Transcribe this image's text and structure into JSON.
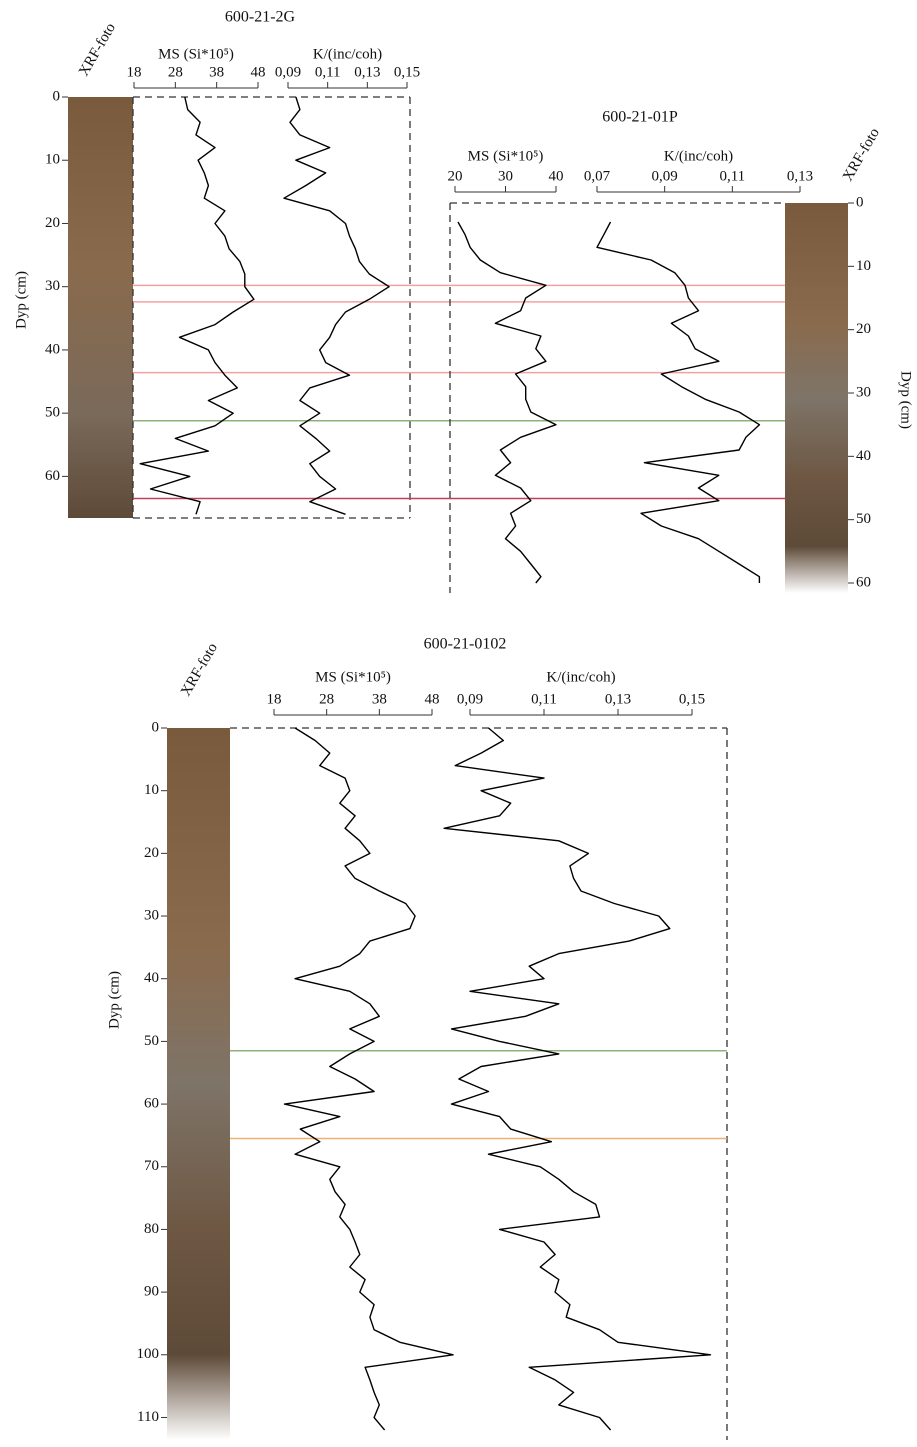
{
  "chart_data": [
    {
      "type": "line",
      "title": "600-21-2G",
      "photo_label": "XRF-foto",
      "ylabel": "Dyp (cm)",
      "ylim": [
        0,
        65
      ],
      "yticks": [
        0,
        10,
        20,
        30,
        40,
        50,
        60
      ],
      "y": [
        0,
        2,
        4,
        6,
        8,
        10,
        12,
        14,
        16,
        18,
        20,
        22,
        24,
        26,
        28,
        30,
        32,
        34,
        36,
        38,
        40,
        42,
        44,
        46,
        48,
        50,
        52,
        54,
        56,
        58,
        60,
        62,
        64,
        66
      ],
      "series": [
        {
          "name": "MS (Si*10⁵)",
          "color": "#000000",
          "xlim": [
            18,
            48
          ],
          "xticks": [
            18,
            28,
            38,
            48
          ],
          "values": [
            30.3,
            31,
            34,
            33,
            37.6,
            33.5,
            35,
            36,
            35,
            40,
            37.6,
            40,
            41,
            43.6,
            44.8,
            44.8,
            47,
            42,
            37.6,
            29,
            36,
            37.6,
            40,
            43,
            36,
            42,
            37.6,
            28,
            36,
            19.5,
            31.5,
            22,
            34,
            33
          ]
        },
        {
          "name": "K/(inc/coh)",
          "color": "#000000",
          "xlim": [
            0.09,
            0.15
          ],
          "xticks": [
            {
              "value": 0.09,
              "label": "0,09"
            },
            {
              "value": 0.11,
              "label": "0,11"
            },
            {
              "value": 0.13,
              "label": "0,13"
            },
            {
              "value": 0.15,
              "label": "0,15"
            }
          ],
          "values": [
            0.094,
            0.096,
            0.091,
            0.096,
            0.111,
            0.094,
            0.109,
            0.099,
            0.088,
            0.111,
            0.119,
            0.121,
            0.124,
            0.126,
            0.131,
            0.141,
            0.131,
            0.119,
            0.114,
            0.111,
            0.106,
            0.109,
            0.121,
            0.101,
            0.096,
            0.106,
            0.096,
            0.104,
            0.111,
            0.101,
            0.106,
            0.114,
            0.101,
            0.119
          ]
        }
      ],
      "markers": [
        {
          "y": 29.8,
          "color": "#f4a0a0"
        },
        {
          "y": 32.4,
          "color": "#f4a0a0"
        },
        {
          "y": 43.6,
          "color": "#f4a0a0"
        },
        {
          "y": 51.2,
          "color": "#8fb07a"
        },
        {
          "y": 63.5,
          "color": "#c04060"
        }
      ]
    },
    {
      "type": "line",
      "title": "600-21-01P",
      "photo_label": "XRF-foto",
      "ylabel": "Dyp (cm)",
      "ylim": [
        0,
        60
      ],
      "yticks": [
        0,
        10,
        20,
        30,
        40,
        50,
        60
      ],
      "y": [
        3,
        5,
        7,
        9,
        11,
        13,
        15,
        17,
        19,
        21,
        23,
        25,
        27,
        29,
        31,
        33,
        35,
        37,
        39,
        41,
        43,
        45,
        47,
        49,
        51,
        53,
        55,
        57,
        59,
        60
      ],
      "series": [
        {
          "name": "MS (Si*10⁵)",
          "color": "#000000",
          "xlim": [
            20,
            40
          ],
          "xticks": [
            20,
            30,
            40
          ],
          "values": [
            20.6,
            22,
            23,
            25,
            29,
            38,
            34,
            33,
            28,
            37,
            36,
            38,
            32,
            34,
            34,
            35,
            40,
            33,
            29,
            31,
            28,
            33,
            35,
            31,
            32,
            30,
            33,
            35,
            37,
            36
          ]
        },
        {
          "name": "K/(inc/coh)",
          "color": "#000000",
          "xlim": [
            0.07,
            0.13
          ],
          "xticks": [
            {
              "value": 0.07,
              "label": "0,07"
            },
            {
              "value": 0.09,
              "label": "0,09"
            },
            {
              "value": 0.11,
              "label": "0,11"
            },
            {
              "value": 0.13,
              "label": "0,13"
            }
          ],
          "values": [
            0.074,
            0.072,
            0.07,
            0.086,
            0.093,
            0.096,
            0.097,
            0.1,
            0.092,
            0.097,
            0.099,
            0.106,
            0.089,
            0.095,
            0.102,
            0.112,
            0.118,
            0.114,
            0.112,
            0.084,
            0.106,
            0.1,
            0.106,
            0.083,
            0.089,
            0.1,
            0.106,
            0.112,
            0.118,
            0.118
          ]
        }
      ],
      "markers": []
    },
    {
      "type": "line",
      "title": "600-21-0102",
      "photo_label": "XRF-foto",
      "ylabel": "Dyp (cm)",
      "ylim": [
        0,
        112
      ],
      "yticks": [
        0,
        10,
        20,
        30,
        40,
        50,
        60,
        70,
        80,
        90,
        100,
        110
      ],
      "y": [
        0,
        2,
        4,
        6,
        8,
        10,
        12,
        14,
        16,
        18,
        20,
        22,
        24,
        26,
        28,
        30,
        32,
        34,
        36,
        38,
        40,
        42,
        44,
        46,
        48,
        50,
        52,
        54,
        56,
        58,
        60,
        62,
        64,
        66,
        68,
        70,
        72,
        74,
        76,
        78,
        80,
        82,
        84,
        86,
        88,
        90,
        92,
        94,
        96,
        98,
        100,
        102,
        104,
        106,
        108,
        110,
        112
      ],
      "series": [
        {
          "name": "MS (Si*10⁵)",
          "color": "#000000",
          "xlim": [
            18,
            48
          ],
          "xticks": [
            18,
            28,
            38,
            48
          ],
          "values": [
            22,
            25.8,
            28.6,
            26.7,
            31.5,
            32.4,
            30.5,
            33.4,
            31.5,
            34.3,
            36.2,
            31.5,
            33.4,
            38,
            43,
            44.8,
            43.8,
            36.2,
            34.3,
            30.5,
            22,
            32.4,
            36.2,
            38,
            32.4,
            37,
            32.4,
            28.6,
            33.4,
            37,
            20,
            30.5,
            23,
            26.7,
            22,
            30.5,
            28.6,
            29.6,
            31.5,
            30.5,
            32.4,
            33.4,
            34.3,
            32.4,
            35.3,
            34.3,
            37,
            36.2,
            37,
            41.9,
            52,
            35.3,
            36.2,
            37,
            38,
            37,
            39
          ]
        },
        {
          "name": "K/(inc/coh)",
          "color": "#000000",
          "xlim": [
            0.09,
            0.15
          ],
          "xticks": [
            {
              "value": 0.09,
              "label": "0,09"
            },
            {
              "value": 0.11,
              "label": "0,11"
            },
            {
              "value": 0.13,
              "label": "0,13"
            },
            {
              "value": 0.15,
              "label": "0,15"
            }
          ],
          "values": [
            0.095,
            0.099,
            0.093,
            0.086,
            0.11,
            0.093,
            0.101,
            0.098,
            0.083,
            0.114,
            0.122,
            0.117,
            0.118,
            0.12,
            0.129,
            0.141,
            0.144,
            0.133,
            0.114,
            0.106,
            0.11,
            0.09,
            0.114,
            0.105,
            0.085,
            0.098,
            0.114,
            0.093,
            0.087,
            0.095,
            0.085,
            0.098,
            0.101,
            0.112,
            0.095,
            0.109,
            0.114,
            0.118,
            0.124,
            0.125,
            0.098,
            0.11,
            0.113,
            0.109,
            0.114,
            0.113,
            0.117,
            0.116,
            0.125,
            0.13,
            0.155,
            0.106,
            0.113,
            0.118,
            0.114,
            0.125,
            0.128
          ]
        }
      ],
      "markers": [
        {
          "y": 51.5,
          "color": "#8fb07a"
        },
        {
          "y": 65.5,
          "color": "#f0b070"
        }
      ]
    }
  ]
}
